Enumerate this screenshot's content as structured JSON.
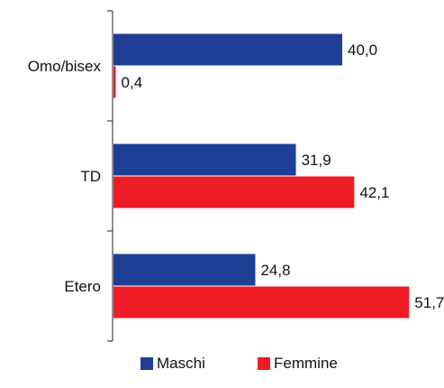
{
  "chart_data": {
    "type": "bar",
    "orientation": "horizontal",
    "categories": [
      "Omo/bisex",
      "TD",
      "Etero"
    ],
    "series": [
      {
        "name": "Maschi",
        "values": [
          40.0,
          31.9,
          24.8
        ],
        "labels": [
          "40,0",
          "31,9",
          "24,8"
        ],
        "color": "#1f3f97"
      },
      {
        "name": "Femmine",
        "values": [
          0.4,
          42.1,
          51.7
        ],
        "labels": [
          "0,4",
          "42,1",
          "51,7"
        ],
        "color": "#ee1c25"
      }
    ],
    "xlim": [
      0,
      52
    ],
    "grid": false,
    "legend": "bottom"
  }
}
